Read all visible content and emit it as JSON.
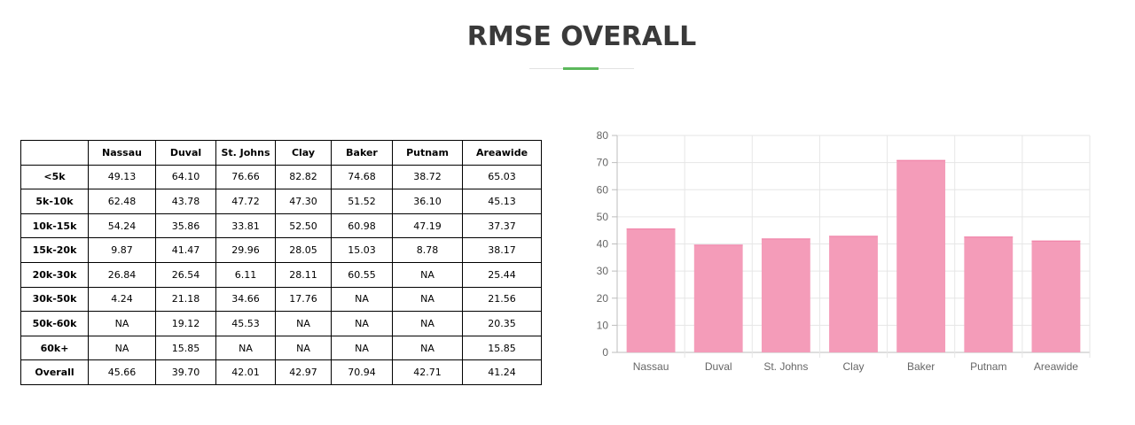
{
  "page": {
    "title": "RMSE OVERALL"
  },
  "colors": {
    "accent": "#5cb85c",
    "bar_fill": "#f49cb9",
    "bar_stroke": "#f07fa6",
    "grid": "#e6e6e6"
  },
  "table": {
    "columns": [
      "",
      "Nassau",
      "Duval",
      "St. Johns",
      "Clay",
      "Baker",
      "Putnam",
      "Areawide"
    ],
    "rows": [
      [
        "<5k",
        "49.13",
        "64.10",
        "76.66",
        "82.82",
        "74.68",
        "38.72",
        "65.03"
      ],
      [
        "5k-10k",
        "62.48",
        "43.78",
        "47.72",
        "47.30",
        "51.52",
        "36.10",
        "45.13"
      ],
      [
        "10k-15k",
        "54.24",
        "35.86",
        "33.81",
        "52.50",
        "60.98",
        "47.19",
        "37.37"
      ],
      [
        "15k-20k",
        "9.87",
        "41.47",
        "29.96",
        "28.05",
        "15.03",
        "8.78",
        "38.17"
      ],
      [
        "20k-30k",
        "26.84",
        "26.54",
        "6.11",
        "28.11",
        "60.55",
        "NA",
        "25.44"
      ],
      [
        "30k-50k",
        "4.24",
        "21.18",
        "34.66",
        "17.76",
        "NA",
        "NA",
        "21.56"
      ],
      [
        "50k-60k",
        "NA",
        "19.12",
        "45.53",
        "NA",
        "NA",
        "NA",
        "20.35"
      ],
      [
        "60k+",
        "NA",
        "15.85",
        "NA",
        "NA",
        "NA",
        "NA",
        "15.85"
      ],
      [
        "Overall",
        "45.66",
        "39.70",
        "42.01",
        "42.97",
        "70.94",
        "42.71",
        "41.24"
      ]
    ]
  },
  "chart_data": {
    "type": "bar",
    "categories": [
      "Nassau",
      "Duval",
      "St. Johns",
      "Clay",
      "Baker",
      "Putnam",
      "Areawide"
    ],
    "values": [
      45.66,
      39.7,
      42.01,
      42.97,
      70.94,
      42.71,
      41.24
    ],
    "title": "",
    "xlabel": "",
    "ylabel": "",
    "ylim": [
      0,
      80
    ],
    "yticks": [
      0,
      10,
      20,
      30,
      40,
      50,
      60,
      70,
      80
    ],
    "grid": true,
    "legend": "none"
  }
}
